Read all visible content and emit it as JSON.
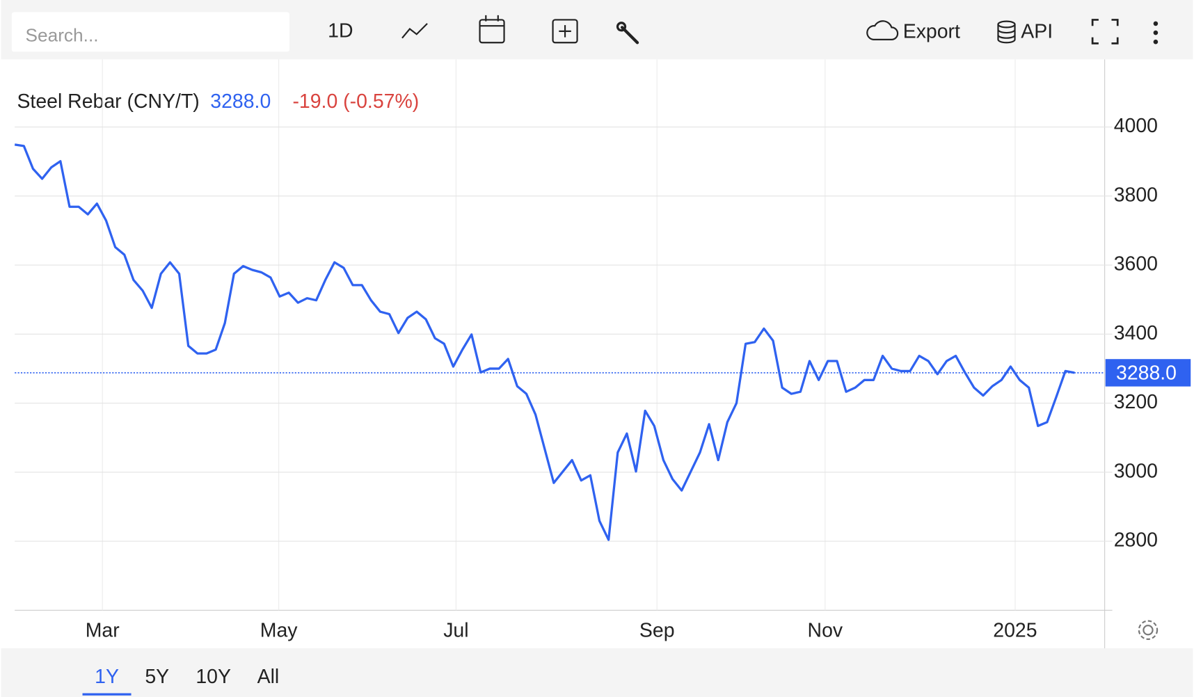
{
  "toolbar": {
    "search_placeholder": "Search...",
    "interval": "1D",
    "export": "Export",
    "api": "API"
  },
  "range_tabs": [
    "1Y",
    "5Y",
    "10Y",
    "All"
  ],
  "chart_data": {
    "type": "line",
    "title": "Steel Rebar (CNY/T)",
    "change_text": "-19.0 (-0.57%)",
    "current": {
      "value": 3288,
      "label": "3288.0"
    },
    "series": [
      {
        "name": "Steel Rebar",
        "color": "#2f62f0",
        "x": [
          0,
          1,
          2,
          3,
          4,
          5,
          6,
          7,
          8,
          9,
          10,
          11,
          12,
          13,
          14,
          15,
          16,
          17,
          18,
          19,
          20,
          21,
          22,
          23,
          24,
          25,
          26,
          27,
          28,
          29,
          30,
          31,
          32,
          33,
          34,
          35,
          36,
          37,
          38,
          39,
          40,
          41,
          42,
          43,
          44,
          45,
          46,
          47,
          48,
          49,
          50,
          51,
          52,
          53,
          54,
          55,
          56,
          57,
          58,
          59,
          60,
          61,
          62,
          63,
          64,
          65,
          66,
          67,
          68,
          69,
          70,
          71,
          72,
          73,
          74,
          75,
          76,
          77,
          78,
          79,
          80,
          81,
          82,
          83,
          84,
          85,
          86,
          87,
          88,
          89,
          90,
          91,
          92,
          93,
          94,
          95,
          96,
          97,
          98,
          99,
          100,
          101,
          102,
          103,
          104,
          105,
          106,
          107,
          108,
          109,
          110,
          111,
          112,
          113,
          114,
          115,
          116
        ],
        "values": [
          3949,
          3945,
          3879,
          3850,
          3883,
          3901,
          3769,
          3769,
          3747,
          3778,
          3729,
          3652,
          3630,
          3557,
          3526,
          3476,
          3575,
          3608,
          3575,
          3366,
          3344,
          3344,
          3355,
          3432,
          3575,
          3597,
          3586,
          3579,
          3564,
          3509,
          3520,
          3491,
          3504,
          3498,
          3557,
          3608,
          3592,
          3542,
          3542,
          3498,
          3465,
          3458,
          3403,
          3447,
          3465,
          3443,
          3388,
          3372,
          3306,
          3355,
          3399,
          3289,
          3300,
          3300,
          3328,
          3249,
          3227,
          3167,
          3068,
          2969,
          3002,
          3035,
          2976,
          2991,
          2859,
          2804,
          3057,
          3112,
          3002,
          3178,
          3134,
          3035,
          2980,
          2947,
          3002,
          3057,
          3139,
          3035,
          3145,
          3200,
          3372,
          3377,
          3416,
          3381,
          3245,
          3227,
          3233,
          3322,
          3267,
          3322,
          3322,
          3233,
          3245,
          3267,
          3267,
          3337,
          3300,
          3293,
          3293,
          3337,
          3322,
          3284,
          3322,
          3337,
          3289,
          3245,
          3222,
          3249,
          3267,
          3306,
          3267,
          3245,
          3134,
          3145,
          3218,
          3293,
          3288
        ]
      }
    ],
    "xlim": [
      0,
      119.3
    ],
    "xticks": [
      {
        "value": 9.6,
        "label": "Mar"
      },
      {
        "value": 28.9,
        "label": "May"
      },
      {
        "value": 48.3,
        "label": "Jul"
      },
      {
        "value": 70.3,
        "label": "Sep"
      },
      {
        "value": 88.7,
        "label": "Nov"
      },
      {
        "value": 109.5,
        "label": "2025"
      }
    ],
    "ylim": [
      2600,
      4196
    ],
    "yticks": [
      2800,
      3000,
      3200,
      3400,
      3600,
      3800,
      4000
    ],
    "grid": true
  }
}
